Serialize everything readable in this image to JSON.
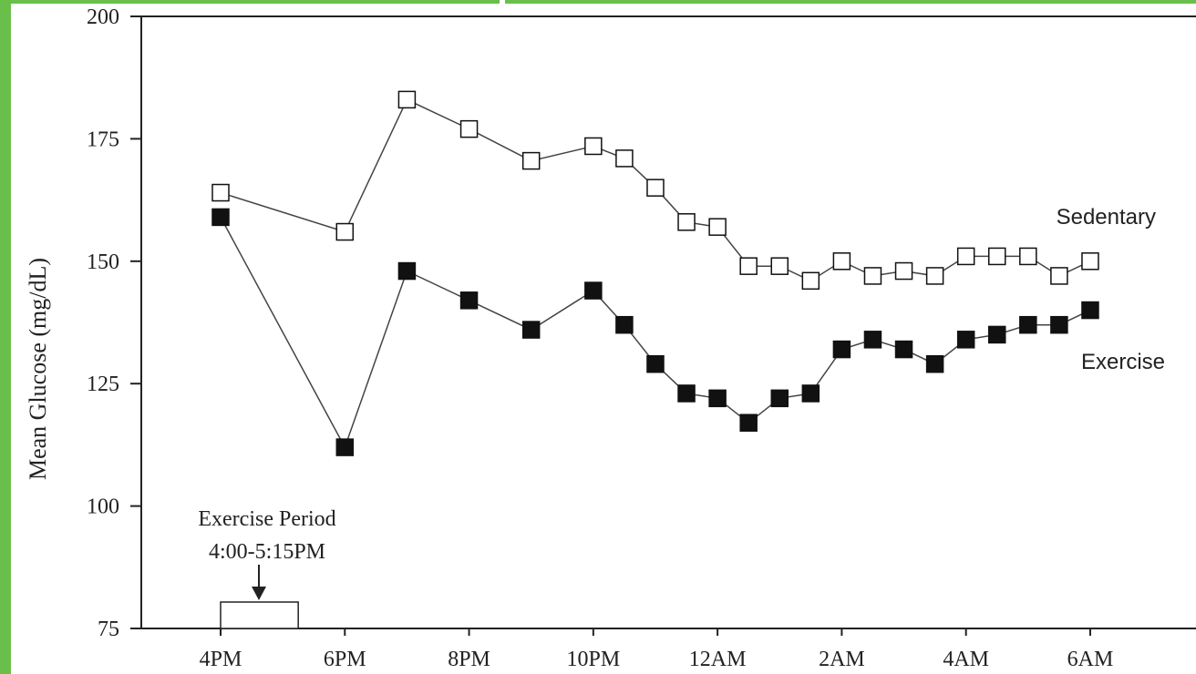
{
  "colors": {
    "frame": "#6abf4b",
    "axis": "#222222",
    "line": "#444444",
    "sedentary_fill": "#ffffff",
    "exercise_fill": "#111111"
  },
  "chart_data": {
    "type": "line",
    "title": "",
    "xlabel": "",
    "ylabel": "Mean Glucose (mg/dL)",
    "ylim": [
      75,
      200
    ],
    "yticks": [
      75,
      100,
      125,
      150,
      175,
      200
    ],
    "xlim": [
      16,
      31
    ],
    "xticks": [
      {
        "x": 16,
        "label": "4PM"
      },
      {
        "x": 18,
        "label": "6PM"
      },
      {
        "x": 20,
        "label": "8PM"
      },
      {
        "x": 22,
        "label": "10PM"
      },
      {
        "x": 24,
        "label": "12AM"
      },
      {
        "x": 26,
        "label": "2AM"
      },
      {
        "x": 28,
        "label": "4AM"
      },
      {
        "x": 30,
        "label": "6AM"
      }
    ],
    "grid": false,
    "series": [
      {
        "name": "Sedentary",
        "marker": "open-square",
        "points": [
          [
            16,
            164
          ],
          [
            18,
            156
          ],
          [
            19,
            183
          ],
          [
            20,
            177
          ],
          [
            21,
            170.5
          ],
          [
            22,
            173.5
          ],
          [
            22.5,
            171
          ],
          [
            23,
            165
          ],
          [
            23.5,
            158
          ],
          [
            24,
            157
          ],
          [
            24.5,
            149
          ],
          [
            25,
            149
          ],
          [
            25.5,
            146
          ],
          [
            26,
            150
          ],
          [
            26.5,
            147
          ],
          [
            27,
            148
          ],
          [
            27.5,
            147
          ],
          [
            28,
            151
          ],
          [
            28.5,
            151
          ],
          [
            29,
            151
          ],
          [
            29.5,
            147
          ],
          [
            30,
            150
          ]
        ]
      },
      {
        "name": "Exercise",
        "marker": "filled-square",
        "points": [
          [
            16,
            159
          ],
          [
            18,
            112
          ],
          [
            19,
            148
          ],
          [
            20,
            142
          ],
          [
            21,
            136
          ],
          [
            22,
            144
          ],
          [
            22.5,
            137
          ],
          [
            23,
            129
          ],
          [
            23.5,
            123
          ],
          [
            24,
            122
          ],
          [
            24.5,
            117
          ],
          [
            25,
            122
          ],
          [
            25.5,
            123
          ],
          [
            26,
            132
          ],
          [
            26.5,
            134
          ],
          [
            27,
            132
          ],
          [
            27.5,
            129
          ],
          [
            28,
            134
          ],
          [
            28.5,
            135
          ],
          [
            29,
            137
          ],
          [
            29.5,
            137
          ],
          [
            30,
            140
          ]
        ]
      }
    ],
    "annotation": {
      "line1": "Exercise Period",
      "line2": "4:00-5:15PM",
      "start": 16,
      "end": 17.25
    }
  }
}
